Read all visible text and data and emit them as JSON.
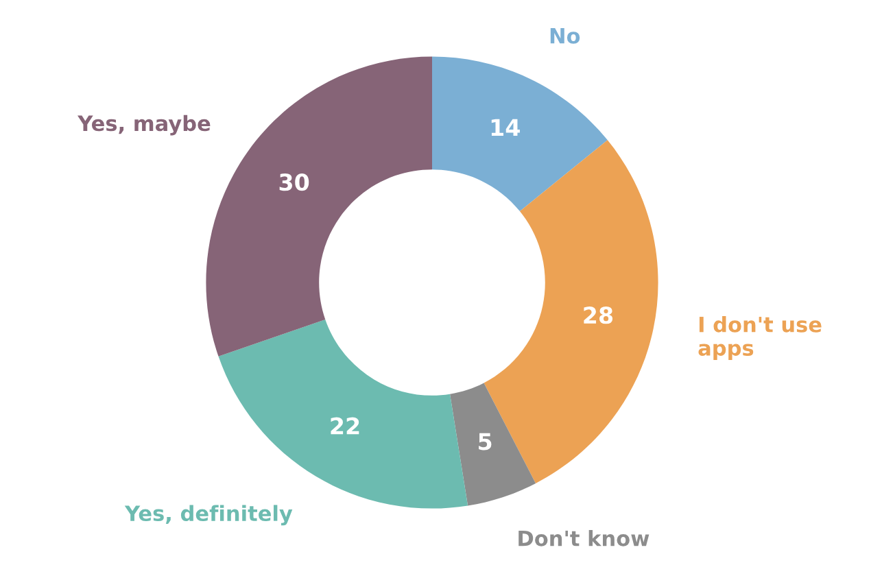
{
  "chart_data": {
    "type": "donut",
    "categories": [
      "No",
      "I don't use\napps",
      "Don't know",
      "Yes, definitely",
      "Yes, maybe"
    ],
    "values": [
      14,
      28,
      5,
      22,
      30
    ],
    "colors": [
      "#7bafd4",
      "#eca254",
      "#8c8c8c",
      "#6cbbb0",
      "#866477"
    ],
    "data_labels": true
  }
}
